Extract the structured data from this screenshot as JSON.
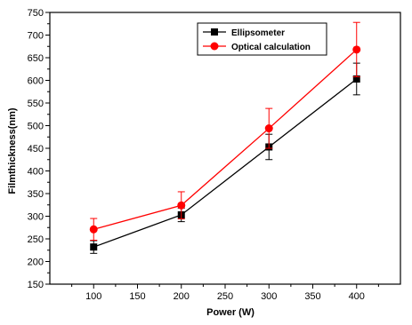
{
  "chart_data": {
    "type": "line",
    "title": "",
    "xlabel": "Power (W)",
    "ylabel": "Filmthickness(nm)",
    "xlim": [
      50,
      450
    ],
    "ylim": [
      150,
      750
    ],
    "xticks": [
      100,
      150,
      200,
      250,
      300,
      350,
      400
    ],
    "yticks": [
      150,
      200,
      250,
      300,
      350,
      400,
      450,
      500,
      550,
      600,
      650,
      700,
      750
    ],
    "x": [
      100,
      200,
      300,
      400
    ],
    "legend_position": "top-center",
    "grid": false,
    "series": [
      {
        "name": "Ellipsometer",
        "color": "#000000",
        "marker": "square",
        "values": [
          232,
          303,
          453,
          603
        ],
        "errors": [
          14,
          15,
          28,
          35
        ]
      },
      {
        "name": "Optical calculation",
        "color": "#ff0000",
        "marker": "circle",
        "values": [
          271,
          324,
          494,
          668
        ],
        "errors": [
          24,
          30,
          44,
          60
        ]
      }
    ]
  }
}
